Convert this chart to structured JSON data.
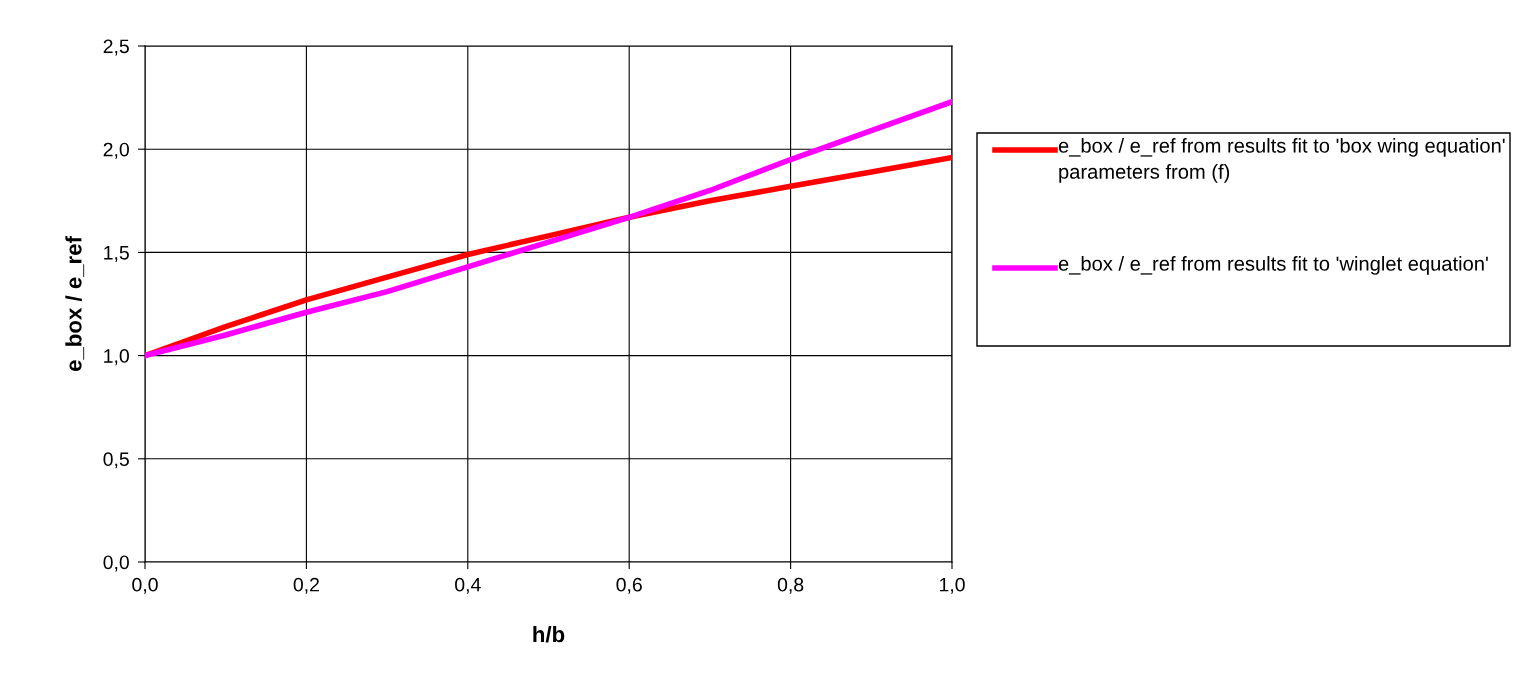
{
  "chart_data": {
    "type": "line",
    "xlabel": "h/b",
    "ylabel": "e_box / e_ref",
    "x": [
      0,
      0.1,
      0.2,
      0.3,
      0.4,
      0.5,
      0.6,
      0.7,
      0.8,
      0.9,
      1.0
    ],
    "series": [
      {
        "name": "e_box / e_ref from results fit to 'box wing equation' parameters from (f)",
        "color": "#ff0000",
        "values": [
          1.0,
          1.14,
          1.27,
          1.38,
          1.49,
          1.58,
          1.67,
          1.75,
          1.82,
          1.89,
          1.96
        ]
      },
      {
        "name": "e_box / e_ref from results fit to 'winglet equation'",
        "color": "#ff00ff",
        "values": [
          1.0,
          1.1,
          1.21,
          1.31,
          1.43,
          1.55,
          1.67,
          1.8,
          1.95,
          2.09,
          2.23
        ]
      }
    ],
    "xlim": [
      0,
      1.0
    ],
    "ylim": [
      0,
      2.5
    ],
    "xticks": [
      {
        "value": 0,
        "label": "0,0"
      },
      {
        "value": 0.2,
        "label": "0,2"
      },
      {
        "value": 0.4,
        "label": "0,4"
      },
      {
        "value": 0.6,
        "label": "0,6"
      },
      {
        "value": 0.8,
        "label": "0,8"
      },
      {
        "value": 1.0,
        "label": "1,0"
      }
    ],
    "yticks": [
      {
        "value": 0,
        "label": "0,0"
      },
      {
        "value": 0.5,
        "label": "0,5"
      },
      {
        "value": 1.0,
        "label": "1,0"
      },
      {
        "value": 1.5,
        "label": "1,5"
      },
      {
        "value": 2.0,
        "label": "2,0"
      },
      {
        "value": 2.5,
        "label": "2,5"
      }
    ],
    "grid": true,
    "legend": "right",
    "marker": "none",
    "line_style": "solid"
  }
}
